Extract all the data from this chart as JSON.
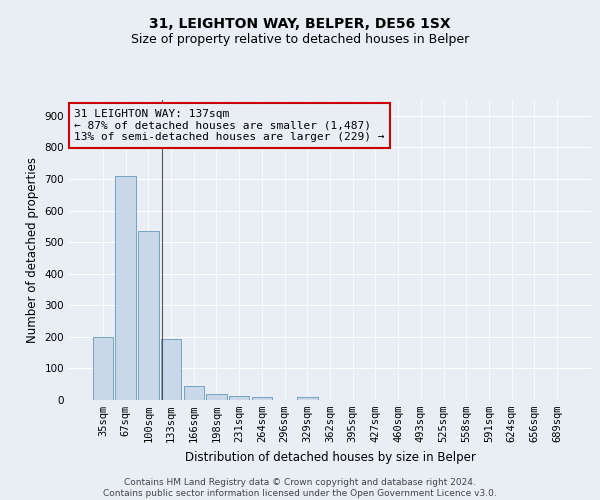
{
  "title": "31, LEIGHTON WAY, BELPER, DE56 1SX",
  "subtitle": "Size of property relative to detached houses in Belper",
  "xlabel": "Distribution of detached houses by size in Belper",
  "ylabel": "Number of detached properties",
  "categories": [
    "35sqm",
    "67sqm",
    "100sqm",
    "133sqm",
    "166sqm",
    "198sqm",
    "231sqm",
    "264sqm",
    "296sqm",
    "329sqm",
    "362sqm",
    "395sqm",
    "427sqm",
    "460sqm",
    "493sqm",
    "525sqm",
    "558sqm",
    "591sqm",
    "624sqm",
    "656sqm",
    "689sqm"
  ],
  "values": [
    200,
    710,
    535,
    192,
    43,
    18,
    13,
    10,
    0,
    8,
    0,
    0,
    0,
    0,
    0,
    0,
    0,
    0,
    0,
    0,
    0
  ],
  "bar_color": "#c8d8e8",
  "bar_edge_color": "#6699bb",
  "background_color": "#e8eef4",
  "grid_color": "#ffffff",
  "annotation_box_color": "#cc0000",
  "annotation_line1": "31 LEIGHTON WAY: 137sqm",
  "annotation_line2": "← 87% of detached houses are smaller (1,487)",
  "annotation_line3": "13% of semi-detached houses are larger (229) →",
  "vline_x_index": 2.62,
  "ylim": [
    0,
    950
  ],
  "yticks": [
    0,
    100,
    200,
    300,
    400,
    500,
    600,
    700,
    800,
    900
  ],
  "footer": "Contains HM Land Registry data © Crown copyright and database right 2024.\nContains public sector information licensed under the Open Government Licence v3.0.",
  "title_fontsize": 10,
  "subtitle_fontsize": 9,
  "annotation_fontsize": 8,
  "axis_label_fontsize": 8.5,
  "tick_fontsize": 7.5,
  "footer_fontsize": 6.5
}
